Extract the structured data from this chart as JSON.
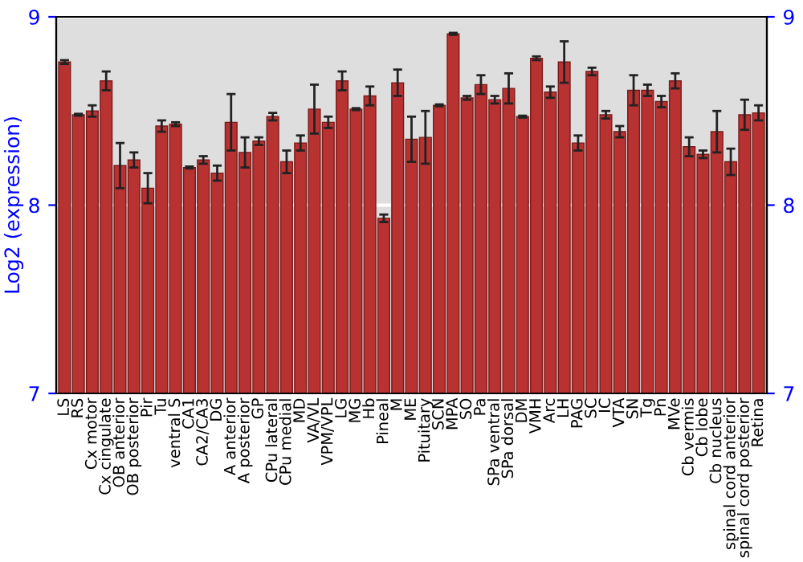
{
  "chart_data": {
    "type": "bar",
    "ylabel": "Log2 (expression)",
    "categories": [
      "LS",
      "RS",
      "Cx motor",
      "Cx cingulate",
      "OB anterior",
      "OB posterior",
      "Pir",
      "Tu",
      "ventral S",
      "CA1",
      "CA2/CA3",
      "DG",
      "A anterior",
      "A posterior",
      "GP",
      "CPu lateral",
      "CPu medial",
      "MD",
      "VA/VL",
      "VPM/VPL",
      "LG",
      "MG",
      "Hb",
      "Pineal",
      "M",
      "ME",
      "Pituitary",
      "SCN",
      "MPA",
      "SO",
      "Pa",
      "SPa ventral",
      "SPa dorsal",
      "DM",
      "VMH",
      "Arc",
      "LH",
      "PAG",
      "SC",
      "IC",
      "VTA",
      "SN",
      "Tg",
      "Pn",
      "MVe",
      "Cb vermis",
      "Cb lobe",
      "Cb nucleus",
      "spinal cord anterior",
      "spinal cord posterior",
      "Retina"
    ],
    "values": [
      8.76,
      8.48,
      8.5,
      8.66,
      8.21,
      8.24,
      8.09,
      8.42,
      8.43,
      8.2,
      8.24,
      8.17,
      8.44,
      8.28,
      8.34,
      8.47,
      8.23,
      8.33,
      8.51,
      8.44,
      8.66,
      8.51,
      8.58,
      7.93,
      8.65,
      8.35,
      8.36,
      8.53,
      8.91,
      8.57,
      8.64,
      8.56,
      8.62,
      8.47,
      8.78,
      8.6,
      8.76,
      8.33,
      8.71,
      8.48,
      8.39,
      8.61,
      8.61,
      8.55,
      8.66,
      8.31,
      8.27,
      8.39,
      8.23,
      8.48,
      8.49
    ],
    "errors": [
      0.01,
      0.005,
      0.03,
      0.05,
      0.12,
      0.04,
      0.08,
      0.03,
      0.01,
      0.005,
      0.02,
      0.04,
      0.15,
      0.08,
      0.02,
      0.02,
      0.06,
      0.04,
      0.13,
      0.03,
      0.05,
      0.005,
      0.05,
      0.02,
      0.07,
      0.12,
      0.14,
      0.005,
      0.005,
      0.01,
      0.05,
      0.02,
      0.08,
      0.005,
      0.01,
      0.03,
      0.11,
      0.04,
      0.02,
      0.02,
      0.03,
      0.08,
      0.03,
      0.03,
      0.04,
      0.05,
      0.02,
      0.11,
      0.07,
      0.08,
      0.04
    ],
    "color": "#b83232",
    "ylim": [
      7,
      9
    ],
    "yticks": [
      7,
      8,
      9
    ],
    "y2lim": [
      7,
      9
    ],
    "y2ticks": [
      7,
      8,
      9
    ],
    "grid": "y"
  }
}
